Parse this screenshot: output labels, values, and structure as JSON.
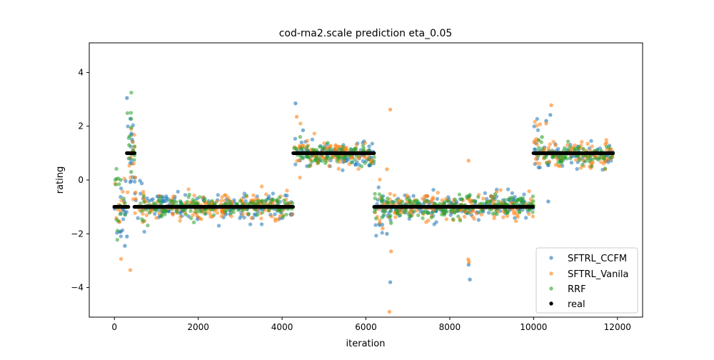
{
  "chart_data": {
    "type": "scatter",
    "title": "cod-rna2.scale prediction eta_0.05",
    "xlabel": "iteration",
    "ylabel": "rating",
    "xlim": [
      -600,
      12600
    ],
    "ylim": [
      -5.1,
      5.1
    ],
    "x_ticks": [
      0,
      2000,
      4000,
      6000,
      8000,
      10000,
      12000
    ],
    "y_ticks": [
      -4,
      -2,
      0,
      2,
      4
    ],
    "grid": false,
    "legend_position": "lower-right",
    "series": [
      {
        "name": "SFTRL_CCFM",
        "color": "#1f77b4",
        "marker": "dot-alpha",
        "spread": 0.22,
        "outliers": [
          [
            300,
            3.05
          ],
          [
            380,
            2.28
          ],
          [
            420,
            1.5
          ],
          [
            250,
            -2.45
          ],
          [
            300,
            -2.1
          ],
          [
            4320,
            2.85
          ],
          [
            6580,
            -3.8
          ],
          [
            8450,
            -3.15
          ],
          [
            8480,
            -3.7
          ],
          [
            10300,
            2.2
          ],
          [
            10400,
            2.42
          ],
          [
            10350,
            -0.8
          ],
          [
            6500,
            -2.0
          ],
          [
            4500,
            1.85
          ]
        ]
      },
      {
        "name": "SFTRL_Vanila",
        "color": "#ff7f0e",
        "marker": "dot-alpha",
        "spread": 0.25,
        "outliers": [
          [
            380,
            -3.35
          ],
          [
            400,
            1.9
          ],
          [
            4350,
            2.35
          ],
          [
            6580,
            2.62
          ],
          [
            6560,
            -4.9
          ],
          [
            6600,
            -2.65
          ],
          [
            6500,
            0.4
          ],
          [
            8450,
            0.72
          ],
          [
            8440,
            -2.95
          ],
          [
            8460,
            -3.05
          ],
          [
            10420,
            2.78
          ],
          [
            10300,
            2.1
          ],
          [
            6400,
            -1.8
          ]
        ]
      },
      {
        "name": "RRF",
        "color": "#2ca02c",
        "marker": "dot-alpha",
        "spread": 0.18,
        "outliers": [
          [
            350,
            1.3
          ],
          [
            400,
            0.3
          ],
          [
            6600,
            -1.6
          ],
          [
            10200,
            1.6
          ],
          [
            150,
            0.0
          ]
        ]
      },
      {
        "name": "real",
        "color": "#000000",
        "marker": "dot",
        "segments": [
          {
            "x_start": 0,
            "x_end": 330,
            "value": -1
          },
          {
            "x_start": 300,
            "x_end": 480,
            "value": 1
          },
          {
            "x_start": 480,
            "x_end": 4270,
            "value": -1
          },
          {
            "x_start": 4270,
            "x_end": 6200,
            "value": 1
          },
          {
            "x_start": 6200,
            "x_end": 10000,
            "value": -1
          },
          {
            "x_start": 10000,
            "x_end": 11900,
            "value": 1
          }
        ]
      }
    ]
  }
}
